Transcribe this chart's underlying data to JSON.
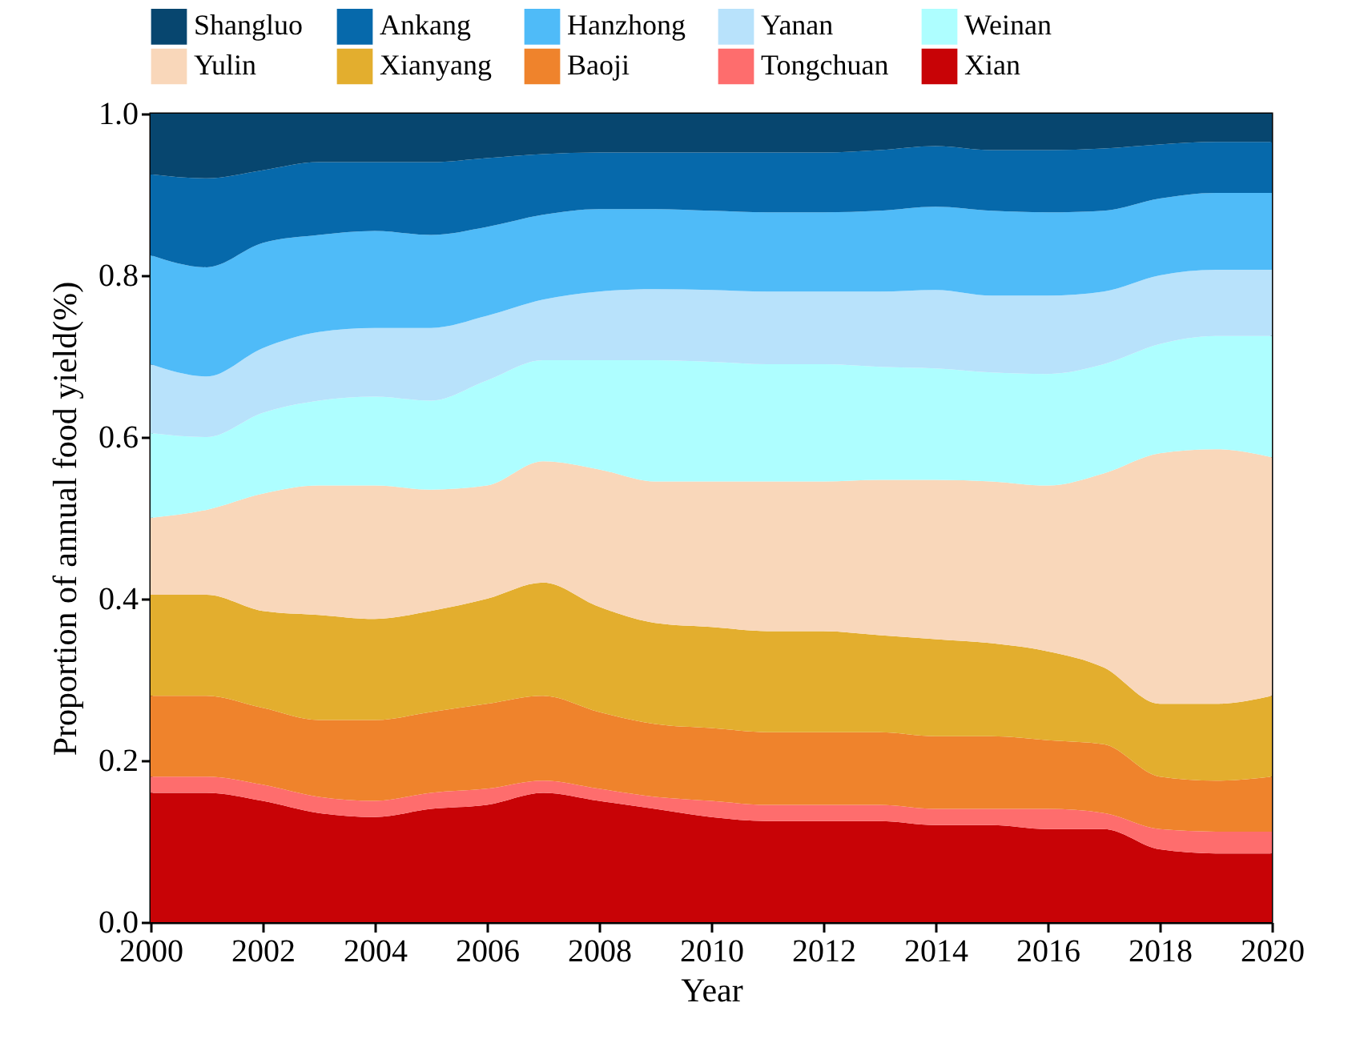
{
  "chart_data": {
    "type": "area",
    "stacked": true,
    "xlabel": "Year",
    "ylabel": "Proportion of annual food yield(%)",
    "x": [
      2000,
      2001,
      2002,
      2003,
      2004,
      2005,
      2006,
      2007,
      2008,
      2009,
      2010,
      2011,
      2012,
      2013,
      2014,
      2015,
      2016,
      2017,
      2018,
      2019,
      2020
    ],
    "xlim": [
      2000,
      2020
    ],
    "xticks": [
      2000,
      2002,
      2004,
      2006,
      2008,
      2010,
      2012,
      2014,
      2016,
      2018,
      2020
    ],
    "ylim": [
      0,
      1
    ],
    "yticks": [
      {
        "value": 0,
        "label": "0.0"
      },
      {
        "value": 0.2,
        "label": "0.2"
      },
      {
        "value": 0.4,
        "label": "0.4"
      },
      {
        "value": 0.6,
        "label": "0.6"
      },
      {
        "value": 0.8,
        "label": "0.8"
      },
      {
        "value": 1,
        "label": "1.0"
      }
    ],
    "grid": false,
    "legend": "top",
    "series": [
      {
        "name": "Xian",
        "color": "#c80306",
        "values": [
          0.16,
          0.16,
          0.15,
          0.135,
          0.13,
          0.14,
          0.145,
          0.16,
          0.15,
          0.14,
          0.13,
          0.125,
          0.125,
          0.125,
          0.12,
          0.12,
          0.115,
          0.115,
          0.09,
          0.085,
          0.085
        ]
      },
      {
        "name": "Tongchuan",
        "color": "#fe6d6d",
        "values": [
          0.02,
          0.02,
          0.02,
          0.02,
          0.02,
          0.02,
          0.02,
          0.015,
          0.015,
          0.015,
          0.02,
          0.02,
          0.02,
          0.02,
          0.02,
          0.02,
          0.025,
          0.02,
          0.025,
          0.027,
          0.027
        ]
      },
      {
        "name": "Baoji",
        "color": "#ef832c",
        "values": [
          0.1,
          0.1,
          0.095,
          0.095,
          0.1,
          0.1,
          0.105,
          0.105,
          0.095,
          0.09,
          0.09,
          0.09,
          0.09,
          0.09,
          0.09,
          0.09,
          0.085,
          0.085,
          0.065,
          0.063,
          0.068
        ]
      },
      {
        "name": "Xianyang",
        "color": "#e3ae2e",
        "values": [
          0.125,
          0.125,
          0.12,
          0.13,
          0.125,
          0.125,
          0.13,
          0.14,
          0.13,
          0.125,
          0.125,
          0.125,
          0.125,
          0.12,
          0.12,
          0.115,
          0.11,
          0.095,
          0.09,
          0.095,
          0.1
        ]
      },
      {
        "name": "Yulin",
        "color": "#f9d7ba",
        "values": [
          0.095,
          0.105,
          0.145,
          0.16,
          0.165,
          0.15,
          0.14,
          0.15,
          0.17,
          0.175,
          0.18,
          0.185,
          0.185,
          0.192,
          0.197,
          0.2,
          0.205,
          0.24,
          0.31,
          0.315,
          0.295
        ]
      },
      {
        "name": "Weinan",
        "color": "#aefeff",
        "values": [
          0.105,
          0.09,
          0.1,
          0.105,
          0.11,
          0.11,
          0.13,
          0.125,
          0.135,
          0.15,
          0.148,
          0.145,
          0.145,
          0.14,
          0.138,
          0.135,
          0.138,
          0.135,
          0.135,
          0.14,
          0.15
        ]
      },
      {
        "name": "Yanan",
        "color": "#b8e2fb",
        "values": [
          0.085,
          0.075,
          0.08,
          0.085,
          0.085,
          0.09,
          0.08,
          0.075,
          0.085,
          0.088,
          0.089,
          0.09,
          0.09,
          0.093,
          0.097,
          0.095,
          0.097,
          0.09,
          0.085,
          0.082,
          0.082
        ]
      },
      {
        "name": "Hanzhong",
        "color": "#4fbbf8",
        "values": [
          0.135,
          0.135,
          0.13,
          0.12,
          0.12,
          0.115,
          0.11,
          0.105,
          0.102,
          0.099,
          0.098,
          0.098,
          0.098,
          0.1,
          0.103,
          0.105,
          0.103,
          0.1,
          0.095,
          0.095,
          0.095
        ]
      },
      {
        "name": "Ankang",
        "color": "#0669ab",
        "values": [
          0.1,
          0.11,
          0.09,
          0.09,
          0.085,
          0.09,
          0.085,
          0.075,
          0.07,
          0.07,
          0.072,
          0.074,
          0.074,
          0.075,
          0.075,
          0.075,
          0.077,
          0.077,
          0.067,
          0.063,
          0.063
        ]
      },
      {
        "name": "Shangluo",
        "color": "#07466f",
        "values": [
          0.075,
          0.08,
          0.07,
          0.06,
          0.06,
          0.06,
          0.055,
          0.05,
          0.048,
          0.048,
          0.048,
          0.048,
          0.048,
          0.045,
          0.04,
          0.045,
          0.045,
          0.043,
          0.038,
          0.035,
          0.035
        ]
      }
    ]
  }
}
